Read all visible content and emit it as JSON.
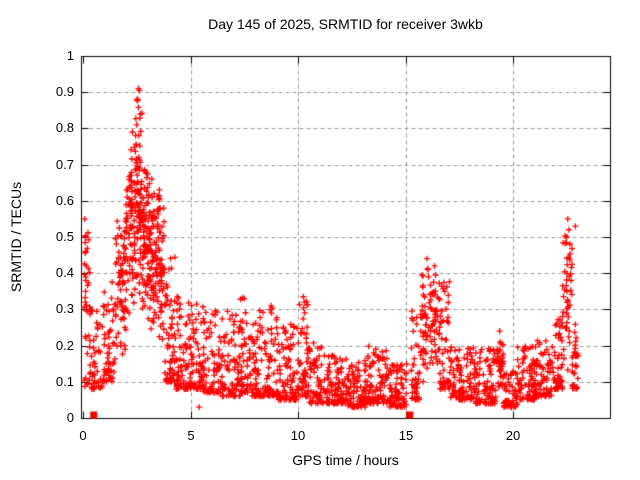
{
  "window": {
    "background": "#ffffff"
  },
  "chart_data": {
    "type": "scatter",
    "title": "Day 145 of 2025, SRMTID for receiver 3wkb",
    "xlabel": "GPS time / hours",
    "ylabel": "SRMTID / TECUs",
    "xlim": [
      0,
      24.5
    ],
    "ylim": [
      0,
      1
    ],
    "xticks": {
      "values": [
        0,
        5,
        10,
        15,
        20
      ],
      "labels": [
        "0",
        "5",
        "10",
        "15",
        "20"
      ]
    },
    "yticks": {
      "values": [
        0,
        0.1,
        0.2,
        0.3,
        0.4,
        0.5,
        0.6,
        0.7,
        0.8,
        0.9,
        1
      ],
      "labels": [
        "0",
        "0.1",
        "0.2",
        "0.3",
        "0.4",
        "0.5",
        "0.6",
        "0.7",
        "0.8",
        "0.9",
        "1"
      ]
    },
    "grid": {
      "enabled": true,
      "color": "#9b9b9b",
      "dash": [
        4,
        3
      ]
    },
    "axis_color": "#000000",
    "marker": {
      "shape": "plus",
      "color": "#ff0000",
      "size": 7
    },
    "gap_markers": {
      "shape": "filled-square",
      "color": "#ff0000",
      "size": 7,
      "points": [
        [
          0.5,
          0
        ],
        [
          15.2,
          0
        ]
      ]
    },
    "notable_points": [
      [
        0.08,
        0.55
      ],
      [
        0.1,
        0.5
      ],
      [
        0.13,
        0.46
      ],
      [
        0.16,
        0.42
      ],
      [
        0.12,
        0.35
      ],
      [
        2.45,
        0.78
      ],
      [
        2.5,
        0.81
      ],
      [
        2.55,
        0.88
      ],
      [
        2.58,
        0.91
      ],
      [
        2.62,
        0.905
      ],
      [
        3.2,
        0.66
      ],
      [
        3.55,
        0.63
      ],
      [
        5.4,
        0.03
      ],
      [
        7.5,
        0.33
      ],
      [
        8.75,
        0.31
      ],
      [
        10.25,
        0.335
      ],
      [
        10.3,
        0.32
      ],
      [
        15.35,
        0.27
      ],
      [
        16.0,
        0.44
      ],
      [
        16.05,
        0.41
      ],
      [
        16.35,
        0.42
      ],
      [
        16.4,
        0.395
      ],
      [
        19.38,
        0.24
      ],
      [
        19.4,
        0.21
      ],
      [
        19.43,
        0.205
      ],
      [
        22.5,
        0.5
      ],
      [
        22.55,
        0.55
      ],
      [
        22.6,
        0.52
      ],
      [
        22.65,
        0.48
      ],
      [
        22.9,
        0.53
      ]
    ],
    "density_envelope": {
      "description": "Dense 30s-cadence scatter summarized as segments: [hour_start, hour_end, value_low, value_high, point_count, bias]. bias=low means mass near the bottom of the range, mid means mass centered.",
      "segments": [
        [
          0.05,
          0.35,
          0.08,
          0.56,
          35,
          "uniform"
        ],
        [
          0.3,
          0.9,
          0.08,
          0.3,
          40,
          "low"
        ],
        [
          0.9,
          1.5,
          0.1,
          0.38,
          55,
          "low"
        ],
        [
          1.5,
          2.0,
          0.15,
          0.6,
          70,
          "mid"
        ],
        [
          2.0,
          2.45,
          0.25,
          0.8,
          90,
          "mid"
        ],
        [
          2.45,
          2.75,
          0.3,
          0.91,
          70,
          "mid"
        ],
        [
          2.75,
          3.1,
          0.25,
          0.72,
          80,
          "mid"
        ],
        [
          3.1,
          3.5,
          0.22,
          0.68,
          70,
          "mid"
        ],
        [
          3.5,
          3.8,
          0.18,
          0.65,
          50,
          "mid"
        ],
        [
          3.8,
          4.3,
          0.1,
          0.45,
          60,
          "low"
        ],
        [
          4.3,
          5.0,
          0.08,
          0.35,
          70,
          "low"
        ],
        [
          5.0,
          5.6,
          0.08,
          0.32,
          60,
          "low"
        ],
        [
          5.6,
          6.4,
          0.07,
          0.3,
          70,
          "low"
        ],
        [
          6.4,
          7.3,
          0.06,
          0.3,
          80,
          "low"
        ],
        [
          7.3,
          7.7,
          0.07,
          0.34,
          40,
          "low"
        ],
        [
          7.7,
          8.6,
          0.06,
          0.3,
          80,
          "low"
        ],
        [
          8.6,
          9.1,
          0.06,
          0.31,
          50,
          "low"
        ],
        [
          9.1,
          10.0,
          0.05,
          0.26,
          85,
          "low"
        ],
        [
          10.0,
          10.5,
          0.06,
          0.34,
          55,
          "low"
        ],
        [
          10.5,
          11.4,
          0.04,
          0.22,
          80,
          "low"
        ],
        [
          11.4,
          12.3,
          0.04,
          0.18,
          85,
          "low"
        ],
        [
          12.3,
          13.2,
          0.03,
          0.16,
          90,
          "low"
        ],
        [
          13.2,
          14.2,
          0.04,
          0.2,
          90,
          "low"
        ],
        [
          14.2,
          15.05,
          0.03,
          0.15,
          80,
          "low"
        ],
        [
          15.25,
          15.7,
          0.05,
          0.3,
          40,
          "low"
        ],
        [
          15.7,
          16.15,
          0.08,
          0.44,
          45,
          "mid"
        ],
        [
          16.15,
          16.6,
          0.1,
          0.42,
          50,
          "mid"
        ],
        [
          16.6,
          17.1,
          0.08,
          0.38,
          50,
          "low"
        ],
        [
          17.1,
          18.2,
          0.05,
          0.2,
          95,
          "low"
        ],
        [
          18.2,
          19.2,
          0.04,
          0.2,
          90,
          "low"
        ],
        [
          19.2,
          19.55,
          0.08,
          0.24,
          35,
          "mid"
        ],
        [
          19.55,
          20.2,
          0.03,
          0.13,
          55,
          "low"
        ],
        [
          20.2,
          21.0,
          0.05,
          0.2,
          75,
          "low"
        ],
        [
          21.0,
          21.8,
          0.06,
          0.22,
          75,
          "low"
        ],
        [
          21.8,
          22.3,
          0.08,
          0.3,
          50,
          "low"
        ],
        [
          22.3,
          22.75,
          0.12,
          0.55,
          45,
          "mid"
        ],
        [
          22.75,
          23.1,
          0.08,
          0.3,
          30,
          "low"
        ]
      ],
      "seed": 42
    }
  }
}
